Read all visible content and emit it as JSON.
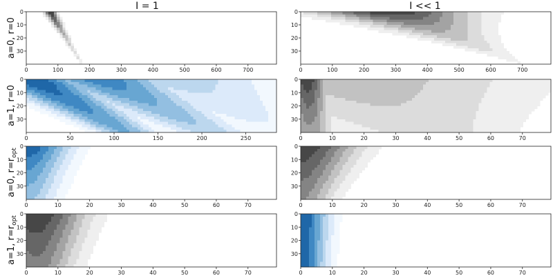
{
  "figure": {
    "column_titles": [
      "I = 1",
      "I << 1"
    ],
    "row_labels": [
      {
        "main": "a=0, r=0",
        "sub": ""
      },
      {
        "main": "a=1, r=0",
        "sub": ""
      },
      {
        "main": "a=0, r=r",
        "sub": "opt"
      },
      {
        "main": "a=1, r=r",
        "sub": "opt"
      }
    ]
  },
  "chart_data": [
    {
      "type": "heatmap",
      "row": 0,
      "col": 0,
      "title": "I = 1",
      "ylabel": "a=0, r=0",
      "xlim": [
        0,
        790
      ],
      "ylim": [
        40,
        0
      ],
      "xticks": [
        0,
        100,
        200,
        300,
        400,
        500,
        600,
        700
      ],
      "yticks": [
        0,
        10,
        20,
        30
      ],
      "colormap": "greys",
      "levels": 7,
      "blobs": [
        {
          "x0": 75,
          "y0": 0,
          "x1": 175,
          "y1": 40,
          "w0": 20,
          "w1": 4,
          "decay": 0.85,
          "peak": 1.0
        }
      ]
    },
    {
      "type": "heatmap",
      "row": 0,
      "col": 1,
      "title": "I << 1",
      "ylabel": "",
      "xlim": [
        0,
        790
      ],
      "ylim": [
        40,
        0
      ],
      "xticks": [
        0,
        100,
        200,
        300,
        400,
        500,
        600,
        700
      ],
      "yticks": [
        0,
        10,
        20,
        30
      ],
      "colormap": "greys",
      "levels": 7,
      "blobs": [
        {
          "x0": 280,
          "y0": 0,
          "x1": 700,
          "y1": 40,
          "w0": 250,
          "w1": 8,
          "decay": 1.0,
          "peak": 1.0
        }
      ]
    },
    {
      "type": "heatmap",
      "row": 1,
      "col": 0,
      "title": "",
      "ylabel": "a=1, r=0",
      "xlim": [
        0,
        285
      ],
      "ylim": [
        40,
        0
      ],
      "xticks": [
        0,
        50,
        100,
        150,
        200,
        250
      ],
      "yticks": [
        0,
        10,
        20,
        30
      ],
      "colormap": "blues",
      "levels": 7,
      "blobs": [
        {
          "x0": 5,
          "y0": 0,
          "x1": 115,
          "y1": 40,
          "w0": 55,
          "w1": 35,
          "decay": 0.25,
          "peak": 1.0
        },
        {
          "x0": 85,
          "y0": 0,
          "x1": 210,
          "y1": 40,
          "w0": 70,
          "w1": 45,
          "decay": 0.35,
          "peak": 0.85
        },
        {
          "x0": 170,
          "y0": 0,
          "x1": 290,
          "y1": 40,
          "w0": 110,
          "w1": 60,
          "decay": 0.4,
          "peak": 0.45
        }
      ]
    },
    {
      "type": "heatmap",
      "row": 1,
      "col": 1,
      "title": "",
      "ylabel": "",
      "xlim": [
        0,
        79
      ],
      "ylim": [
        40,
        0
      ],
      "xticks": [
        0,
        10,
        20,
        30,
        40,
        50,
        60,
        70
      ],
      "yticks": [
        0,
        10,
        20,
        30
      ],
      "colormap": "greys",
      "levels": 7,
      "blobs": [
        {
          "x0": 2,
          "y0": 0,
          "x1": 3,
          "y1": 40,
          "w0": 6,
          "w1": 7,
          "decay": 0.3,
          "peak": 1.0
        },
        {
          "x0": 15,
          "y0": 0,
          "x1": 40,
          "y1": 40,
          "w0": 60,
          "w1": 30,
          "decay": 0.2,
          "peak": 0.45
        }
      ]
    },
    {
      "type": "heatmap",
      "row": 2,
      "col": 0,
      "title": "",
      "ylabel": "a=0, r=r_opt",
      "xlim": [
        0,
        79
      ],
      "ylim": [
        40,
        0
      ],
      "xticks": [
        0,
        10,
        20,
        30,
        40,
        50,
        60,
        70
      ],
      "yticks": [
        0,
        10,
        20,
        30
      ],
      "colormap": "blues",
      "levels": 7,
      "blobs": [
        {
          "x0": 0,
          "y0": 0,
          "x1": 0,
          "y1": 40,
          "w0": 14,
          "w1": 10,
          "decay": 0.35,
          "peak": 1.0
        }
      ]
    },
    {
      "type": "heatmap",
      "row": 2,
      "col": 1,
      "title": "",
      "ylabel": "",
      "xlim": [
        0,
        79
      ],
      "ylim": [
        40,
        0
      ],
      "xticks": [
        0,
        10,
        20,
        30,
        40,
        50,
        60,
        70
      ],
      "yticks": [
        0,
        10,
        20,
        30
      ],
      "colormap": "greys",
      "levels": 7,
      "blobs": [
        {
          "x0": 0,
          "y0": 0,
          "x1": 0,
          "y1": 40,
          "w0": 18,
          "w1": 10,
          "decay": 0.25,
          "peak": 1.0
        }
      ]
    },
    {
      "type": "heatmap",
      "row": 3,
      "col": 0,
      "title": "",
      "ylabel": "a=1, r=r_opt",
      "xlim": [
        0,
        79
      ],
      "ylim": [
        40,
        0
      ],
      "xticks": [
        0,
        10,
        20,
        30,
        40,
        50,
        60,
        70
      ],
      "yticks": [
        0,
        10,
        20,
        30
      ],
      "colormap": "greys",
      "levels": 7,
      "blobs": [
        {
          "x0": 3,
          "y0": 0,
          "x1": 3,
          "y1": 40,
          "w0": 16,
          "w1": 12,
          "decay": 0.2,
          "peak": 1.0
        }
      ]
    },
    {
      "type": "heatmap",
      "row": 3,
      "col": 1,
      "title": "",
      "ylabel": "",
      "xlim": [
        0,
        79
      ],
      "ylim": [
        40,
        0
      ],
      "xticks": [
        0,
        10,
        20,
        30,
        40,
        50,
        60,
        70
      ],
      "yticks": [
        0,
        10,
        20,
        30
      ],
      "colormap": "blues",
      "levels": 7,
      "blobs": [
        {
          "x0": 0,
          "y0": 0,
          "x1": 0,
          "y1": 40,
          "w0": 9,
          "w1": 8,
          "decay": 0.02,
          "peak": 1.0
        }
      ]
    }
  ]
}
